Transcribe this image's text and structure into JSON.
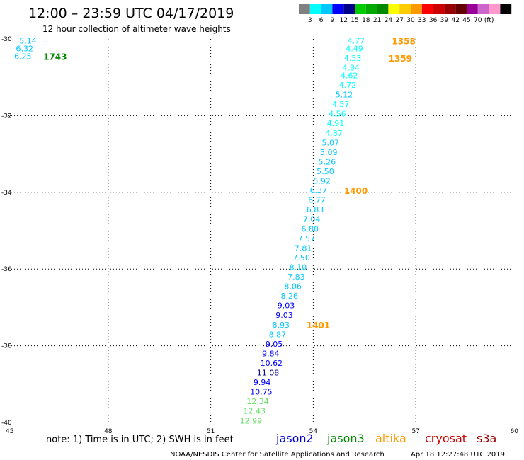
{
  "header": {
    "title": "12:00 – 23:59 UTC 04/17/2019",
    "subtitle": "12 hour collection of altimeter wave heights"
  },
  "legend_scale": {
    "colors": [
      "#808080",
      "#00ffff",
      "#00c8ff",
      "#0000ff",
      "#00008b",
      "#00cc00",
      "#00aa00",
      "#008800",
      "#ffff00",
      "#ffcc00",
      "#ff9900",
      "#ff0000",
      "#cc0000",
      "#990000",
      "#660000",
      "#990099",
      "#cc66cc",
      "#ff99cc",
      "#000000"
    ],
    "labels": [
      "3",
      "6",
      "9",
      "12",
      "15",
      "18",
      "21",
      "24",
      "27",
      "30",
      "33",
      "36",
      "39",
      "42",
      "45",
      "70",
      "(ft)"
    ]
  },
  "note": "note:  1) Time is in UTC;  2) SWH is in feet",
  "satellites": [
    {
      "name": "jason2",
      "color": "#0000cc"
    },
    {
      "name": "jason3",
      "color": "#008800"
    },
    {
      "name": "altika",
      "color": "#ff9900"
    },
    {
      "name": "cryosat",
      "color": "#cc0000"
    },
    {
      "name": "s3a",
      "color": "#990000"
    }
  ],
  "footer": {
    "credit": "NOAA/NESDIS Center for Satellite Applications and Research",
    "timestamp": "Apr 18 12:27:48 UTC 2019"
  },
  "chart_data": {
    "type": "scatter",
    "xlim": [
      45,
      60
    ],
    "ylim": [
      -40,
      -30
    ],
    "x_ticks": [
      "45",
      "48",
      "51",
      "54",
      "57",
      "60"
    ],
    "y_ticks": [
      "-30",
      "-32",
      "-34",
      "-36",
      "-38",
      "-40"
    ],
    "grid": true,
    "points": [
      {
        "x": 45.4,
        "y": -30.05,
        "label": "5.14",
        "color": "#00c8ff"
      },
      {
        "x": 45.3,
        "y": -30.25,
        "label": "6.32",
        "color": "#00c8ff"
      },
      {
        "x": 45.25,
        "y": -30.45,
        "label": "6.25",
        "color": "#00c8ff"
      },
      {
        "x": 55.0,
        "y": -30.05,
        "label": "4.77",
        "color": "#00ffff"
      },
      {
        "x": 54.95,
        "y": -30.25,
        "label": "4.49",
        "color": "#00ffff"
      },
      {
        "x": 54.9,
        "y": -30.5,
        "label": "4.53",
        "color": "#00ffff"
      },
      {
        "x": 54.85,
        "y": -30.75,
        "label": "4.84",
        "color": "#00ffff"
      },
      {
        "x": 54.8,
        "y": -30.95,
        "label": "4.62",
        "color": "#00ffff"
      },
      {
        "x": 54.75,
        "y": -31.2,
        "label": "4.72",
        "color": "#00ffff"
      },
      {
        "x": 54.65,
        "y": -31.45,
        "label": "5.12",
        "color": "#00c8ff"
      },
      {
        "x": 54.55,
        "y": -31.7,
        "label": "4.57",
        "color": "#00ffff"
      },
      {
        "x": 54.45,
        "y": -31.95,
        "label": "4.56",
        "color": "#00ffff"
      },
      {
        "x": 54.4,
        "y": -32.2,
        "label": "4.91",
        "color": "#00ffff"
      },
      {
        "x": 54.35,
        "y": -32.45,
        "label": "4.87",
        "color": "#00ffff"
      },
      {
        "x": 54.25,
        "y": -32.7,
        "label": "5.07",
        "color": "#00c8ff"
      },
      {
        "x": 54.2,
        "y": -32.95,
        "label": "5.09",
        "color": "#00c8ff"
      },
      {
        "x": 54.15,
        "y": -33.2,
        "label": "5.26",
        "color": "#00c8ff"
      },
      {
        "x": 54.1,
        "y": -33.45,
        "label": "5.50",
        "color": "#00c8ff"
      },
      {
        "x": 54.0,
        "y": -33.7,
        "label": "5.92",
        "color": "#00c8ff"
      },
      {
        "x": 53.9,
        "y": -33.95,
        "label": "6.37",
        "color": "#00c8ff"
      },
      {
        "x": 53.85,
        "y": -34.2,
        "label": "6.77",
        "color": "#00c8ff"
      },
      {
        "x": 53.8,
        "y": -34.45,
        "label": "6.83",
        "color": "#00c8ff"
      },
      {
        "x": 53.7,
        "y": -34.7,
        "label": "7.04",
        "color": "#00c8ff"
      },
      {
        "x": 53.65,
        "y": -34.95,
        "label": "6.80",
        "color": "#00c8ff"
      },
      {
        "x": 53.55,
        "y": -35.2,
        "label": "7.57",
        "color": "#00c8ff"
      },
      {
        "x": 53.45,
        "y": -35.45,
        "label": "7.81",
        "color": "#00c8ff"
      },
      {
        "x": 53.4,
        "y": -35.7,
        "label": "7.50",
        "color": "#00c8ff"
      },
      {
        "x": 53.3,
        "y": -35.95,
        "label": "8.10",
        "color": "#00c8ff"
      },
      {
        "x": 53.25,
        "y": -36.2,
        "label": "7.83",
        "color": "#00c8ff"
      },
      {
        "x": 53.15,
        "y": -36.45,
        "label": "8.06",
        "color": "#00c8ff"
      },
      {
        "x": 53.05,
        "y": -36.7,
        "label": "8.26",
        "color": "#00c8ff"
      },
      {
        "x": 52.95,
        "y": -36.95,
        "label": "9.03",
        "color": "#0000ff"
      },
      {
        "x": 52.9,
        "y": -37.2,
        "label": "9.03",
        "color": "#0000ff"
      },
      {
        "x": 52.8,
        "y": -37.45,
        "label": "8.93",
        "color": "#00c8ff"
      },
      {
        "x": 52.7,
        "y": -37.7,
        "label": "8.87",
        "color": "#00c8ff"
      },
      {
        "x": 52.6,
        "y": -37.95,
        "label": "9.05",
        "color": "#0000ff"
      },
      {
        "x": 52.5,
        "y": -38.2,
        "label": "9.84",
        "color": "#0000ff"
      },
      {
        "x": 52.45,
        "y": -38.45,
        "label": "10.62",
        "color": "#0000ff"
      },
      {
        "x": 52.35,
        "y": -38.7,
        "label": "11.08",
        "color": "#00008b"
      },
      {
        "x": 52.25,
        "y": -38.95,
        "label": "9.94",
        "color": "#0000ff"
      },
      {
        "x": 52.15,
        "y": -39.2,
        "label": "10.75",
        "color": "#0000ff"
      },
      {
        "x": 52.05,
        "y": -39.45,
        "label": "12.34",
        "color": "#66dd66"
      },
      {
        "x": 51.95,
        "y": -39.7,
        "label": "12.43",
        "color": "#66dd66"
      },
      {
        "x": 51.85,
        "y": -39.95,
        "label": "12.99",
        "color": "#66dd66"
      }
    ],
    "pass_labels": [
      {
        "x": 46.1,
        "y": -30.45,
        "text": "1743",
        "color": "#008800"
      },
      {
        "x": 56.3,
        "y": -30.05,
        "text": "1358",
        "color": "#ff9900"
      },
      {
        "x": 56.2,
        "y": -30.5,
        "text": "1359",
        "color": "#ff9900"
      },
      {
        "x": 54.9,
        "y": -33.95,
        "text": "1400",
        "color": "#ff9900"
      },
      {
        "x": 53.8,
        "y": -37.45,
        "text": "1401",
        "color": "#ff9900"
      }
    ]
  }
}
